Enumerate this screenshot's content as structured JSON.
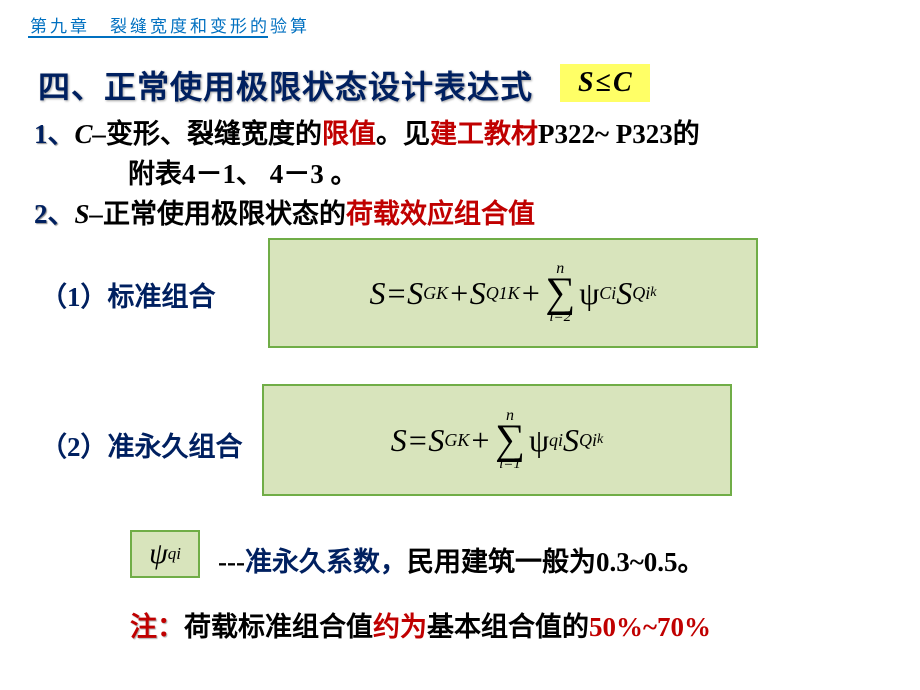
{
  "header": "第九章　裂缝宽度和变形的验算",
  "main_title": "四、正常使用极限状态设计表达式",
  "ineq": {
    "s": "S",
    "le": "≤",
    "c": "C"
  },
  "line1": {
    "num": "1、",
    "cvar": "C–",
    "t1": "变形、裂缝宽度的",
    "limit": "限值",
    "t2": "。见",
    "ref": "建工教材",
    "t3": "P322~ P323的"
  },
  "line1b": "附表4－1、 4－3 。",
  "line2": {
    "num": "2、",
    "svar": "S–",
    "t1": "正常使用极限状态的",
    "load": "荷载效应组合值"
  },
  "sub1": "（1）标准组合",
  "sub2": "（2）准永久组合",
  "formula1": {
    "s": "S",
    "eq": " = ",
    "sgk": "S",
    "sgk_sub": "GK",
    "plus1": " + ",
    "sq1k": "S",
    "sq1k_sub": "Q1K",
    "plus2": " + ",
    "sum_top": "n",
    "sum_bot": "i=2",
    "psi": "ψ",
    "psi_sub": "Ci",
    "sqi": "S",
    "sqi_sub": "Qi",
    "sqi_sub2": "k"
  },
  "formula2": {
    "s": "S",
    "eq": " = ",
    "sgk": "S",
    "sgk_sub": "GK",
    "plus1": " + ",
    "sum_top": "n",
    "sum_bot": "i=1",
    "psi": "ψ",
    "psi_sub": "qi",
    "sqi": "S",
    "sqi_sub": "Qi",
    "sqi_sub2": "k"
  },
  "psi_box": {
    "psi": "ψ",
    "sub": "qi"
  },
  "psi_line": {
    "dash": "---",
    "blue": "准永久系数，",
    "t1": "民用建筑一般为",
    "val": "0.3~0.5",
    "dot": "。"
  },
  "note": {
    "label": "注：",
    "t1": "荷载标准组合值",
    "t2": "约为",
    "t3": "基本组合值的",
    "val": "50%~70%"
  },
  "colors": {
    "blue_dark": "#002060",
    "blue_header": "#0070c0",
    "red": "#c00000",
    "box_bg": "#d8e4bc",
    "box_border": "#70ad47",
    "yellow": "#ffff66"
  }
}
